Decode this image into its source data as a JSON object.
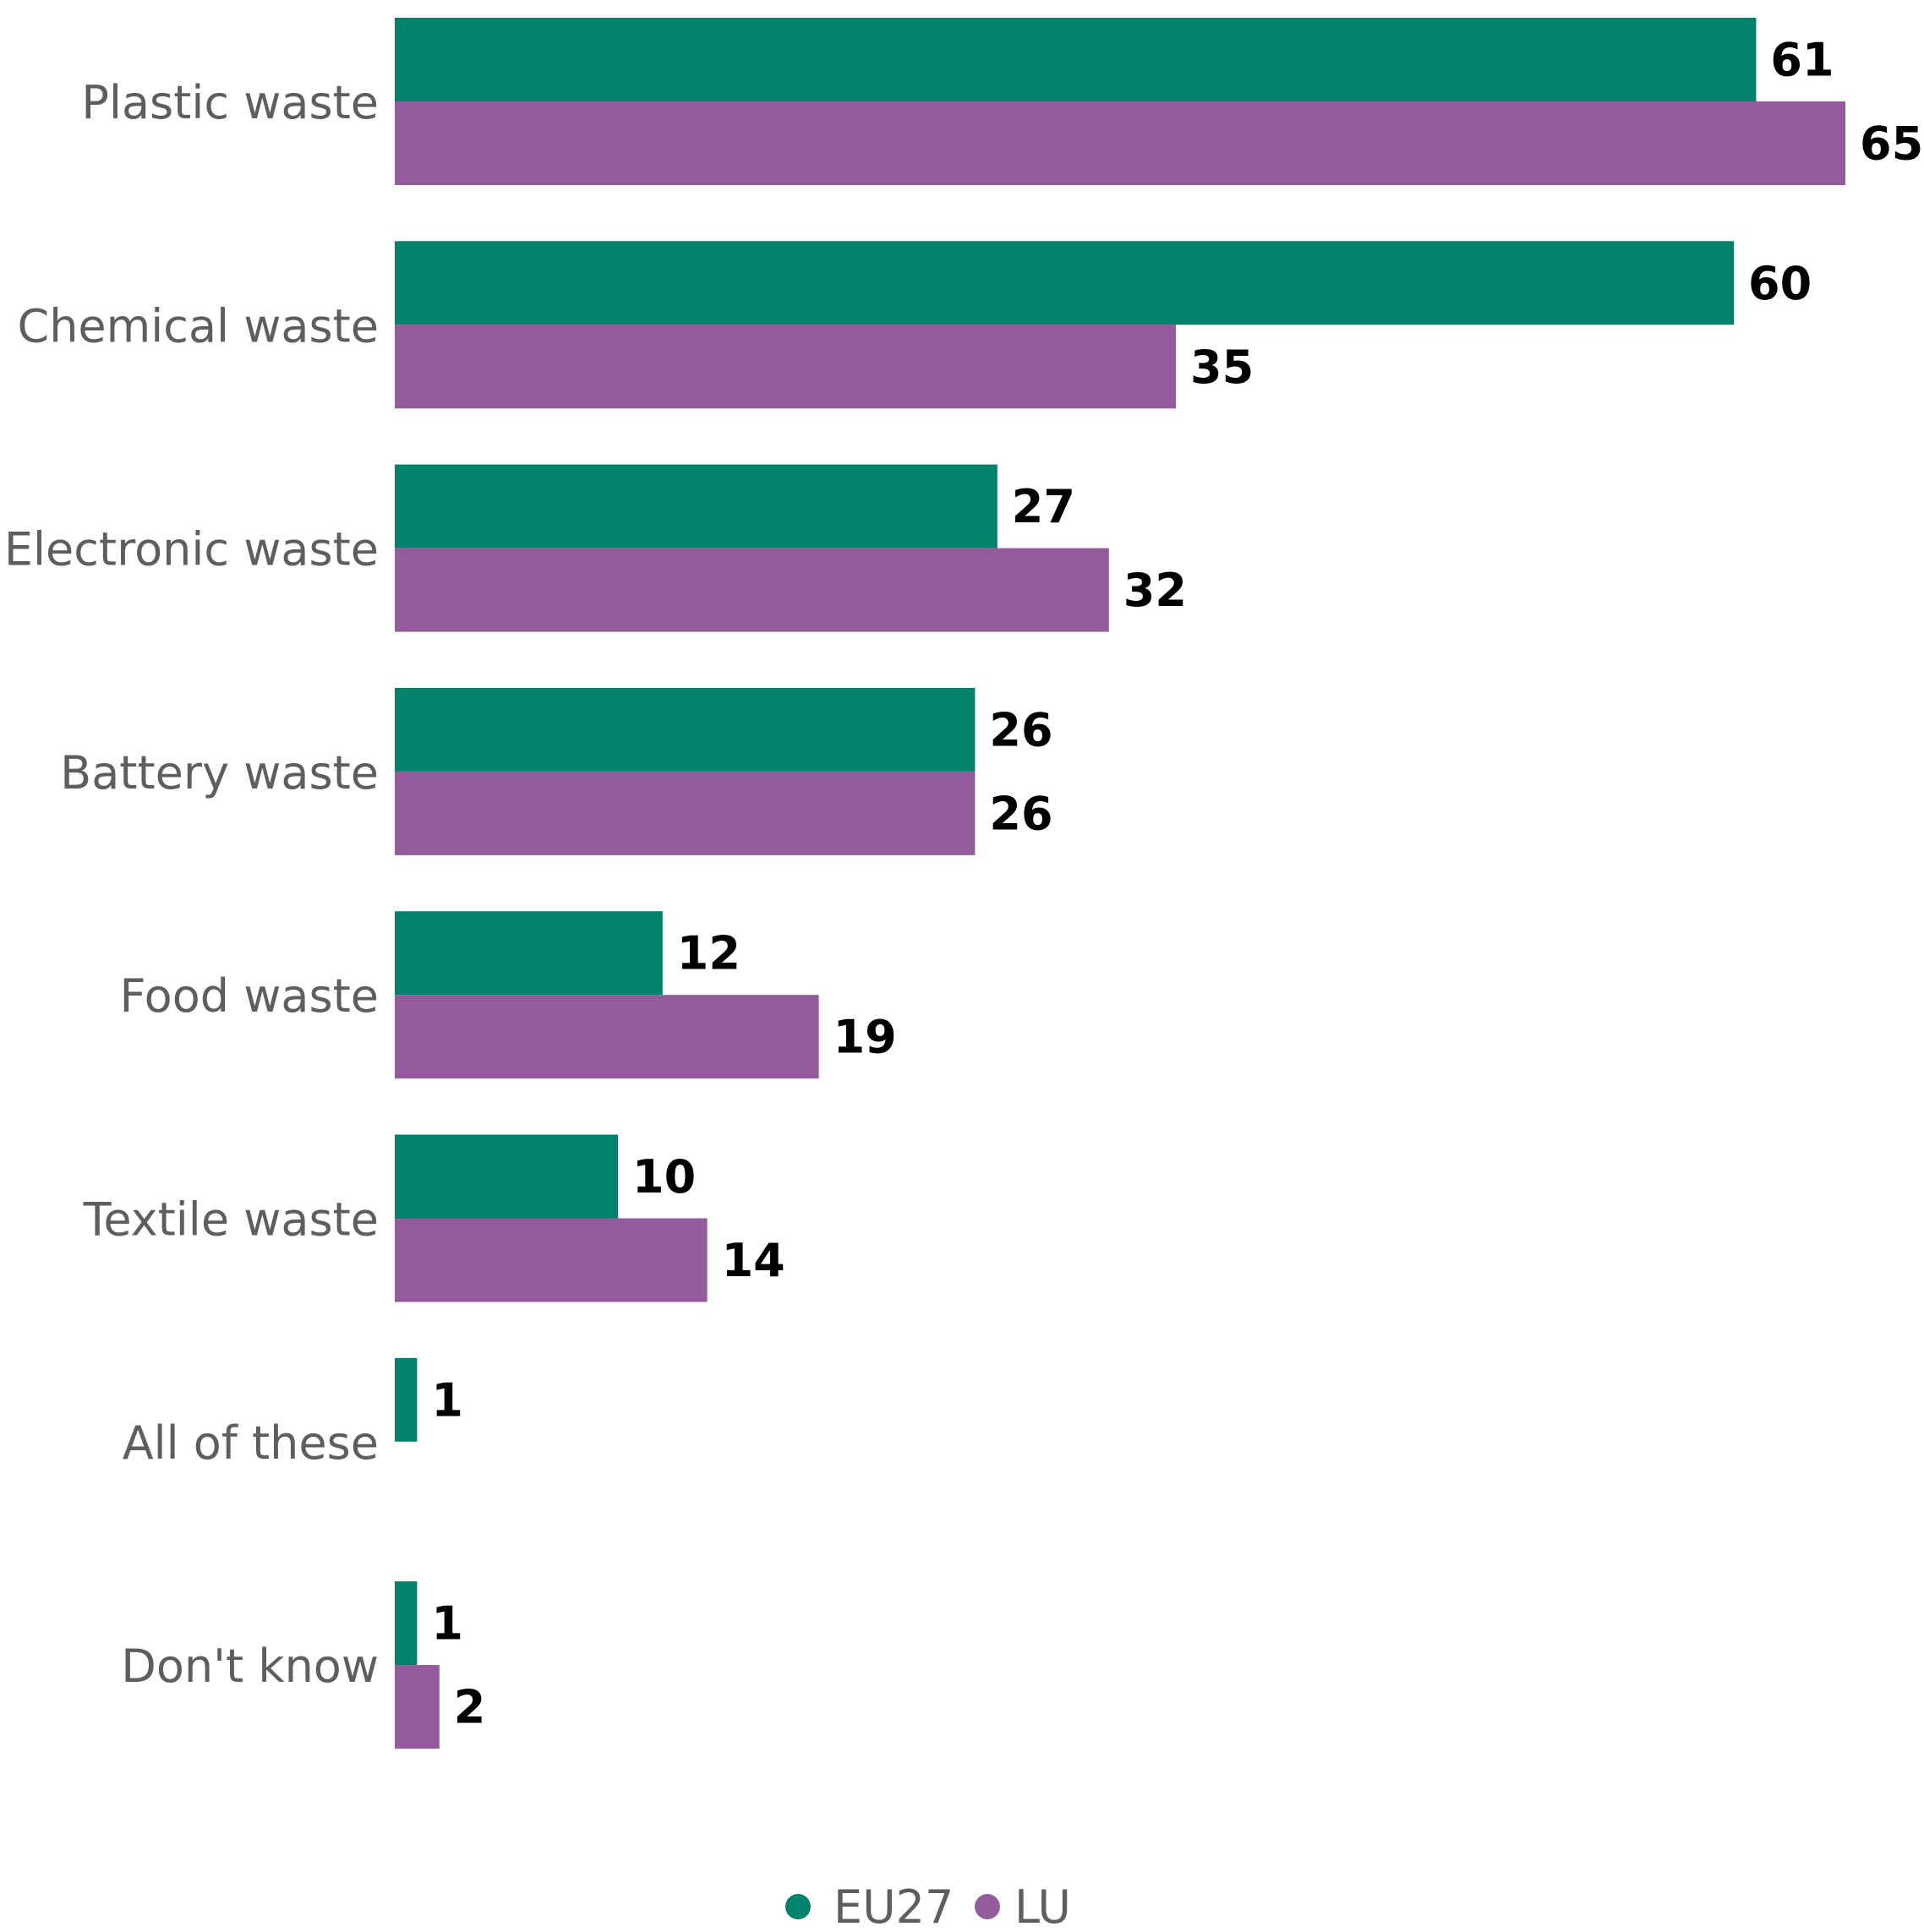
{
  "chart_data": {
    "type": "bar",
    "orientation": "horizontal",
    "categories": [
      "Plastic waste",
      "Chemical waste",
      "Electronic waste",
      "Battery waste",
      "Food waste",
      "Textile waste",
      "All of these",
      "Don't know"
    ],
    "series": [
      {
        "name": "EU27",
        "color": "#02826b",
        "values": [
          61,
          60,
          27,
          26,
          12,
          10,
          1,
          1
        ]
      },
      {
        "name": "LU",
        "color": "#935b9c",
        "values": [
          65,
          35,
          32,
          26,
          19,
          14,
          null,
          2
        ]
      }
    ],
    "xlim": [
      0,
      65
    ],
    "grid": false,
    "legend": "bottom-center"
  }
}
